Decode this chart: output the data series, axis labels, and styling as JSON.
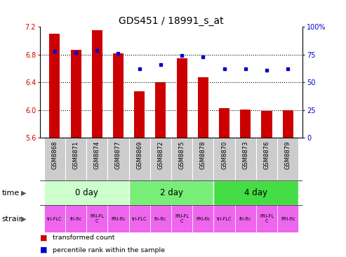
{
  "title": "GDS451 / 18991_s_at",
  "samples": [
    "GSM8868",
    "GSM8871",
    "GSM8874",
    "GSM8877",
    "GSM8869",
    "GSM8872",
    "GSM8875",
    "GSM8878",
    "GSM8870",
    "GSM8873",
    "GSM8876",
    "GSM8879"
  ],
  "transformed_counts": [
    7.1,
    6.87,
    7.15,
    6.82,
    6.27,
    6.4,
    6.75,
    6.47,
    6.03,
    6.01,
    5.99,
    6.0
  ],
  "percentile_ranks": [
    78,
    77,
    79,
    76,
    62,
    66,
    74,
    73,
    62,
    62,
    61,
    62
  ],
  "ylim_left": [
    5.6,
    7.2
  ],
  "ylim_right": [
    0,
    100
  ],
  "yticks_left": [
    5.6,
    6.0,
    6.4,
    6.8,
    7.2
  ],
  "yticks_right": [
    0,
    25,
    50,
    75,
    100
  ],
  "ytick_labels_right": [
    "0",
    "25",
    "50",
    "75",
    "100%"
  ],
  "bar_color": "#cc0000",
  "dot_color": "#0000cc",
  "time_groups": [
    {
      "label": "0 day",
      "start": 0,
      "end": 3,
      "color": "#ccffcc"
    },
    {
      "label": "2 day",
      "start": 4,
      "end": 7,
      "color": "#77ee77"
    },
    {
      "label": "4 day",
      "start": 8,
      "end": 11,
      "color": "#44dd44"
    }
  ],
  "strain_labels": [
    "tri-FLC",
    "fri-flc",
    "FRI-FL\nC",
    "FRI-flc",
    "tri-FLC",
    "fri-flc",
    "FRI-FL\nC",
    "FRI-flc",
    "tri-FLC",
    "fri-flc",
    "FRI-FL\nC",
    "FRI-flc"
  ],
  "xlabel_color": "#cc0000",
  "title_fontsize": 10,
  "tick_fontsize": 7,
  "bar_bottom": 5.6,
  "sample_bg_color": "#cccccc",
  "strain_color": "#ee66ee",
  "legend_red_label": "transformed count",
  "legend_blue_label": "percentile rank within the sample",
  "hline_values": [
    6.0,
    6.4,
    6.8
  ]
}
